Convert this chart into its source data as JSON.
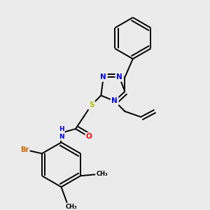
{
  "bg_color": "#ebebeb",
  "atom_colors": {
    "N": "#0000ee",
    "S": "#b8b800",
    "O": "#ff0000",
    "Br": "#cc6600",
    "C": "#000000",
    "H": "#000000"
  },
  "bond_color": "#000000",
  "figsize": [
    3.0,
    3.0
  ],
  "dpi": 100
}
